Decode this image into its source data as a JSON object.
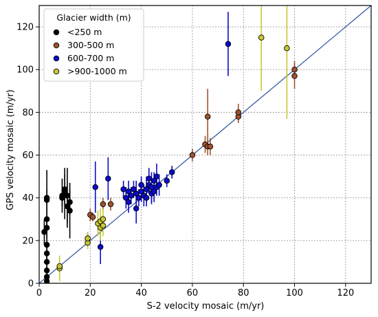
{
  "chart_data": {
    "type": "scatter",
    "xlabel": "S-2 velocity mosaic (m/yr)",
    "ylabel": "GPS velocity mosaic (m/yr)",
    "xlim": [
      0,
      130
    ],
    "ylim": [
      0,
      130
    ],
    "xticks": [
      "0",
      "20",
      "40",
      "60",
      "80",
      "100",
      "120"
    ],
    "yticks": [
      "0",
      "20",
      "40",
      "60",
      "80",
      "100",
      "120"
    ],
    "grid": true,
    "grid_style": "dotted",
    "reference_line": "1:1",
    "reference_line_color": "#3b5ba5",
    "legend": {
      "title": "Glacier width (m)",
      "location": "top-left"
    },
    "series": [
      {
        "name": "<250 m",
        "color": "#000000",
        "points": [
          {
            "x": 2,
            "y": 24,
            "err": 6
          },
          {
            "x": 3,
            "y": 40,
            "err": 13
          },
          {
            "x": 3,
            "y": 39,
            "err": 5
          },
          {
            "x": 3,
            "y": 26,
            "err": 5
          },
          {
            "x": 3,
            "y": 30,
            "err": 4
          },
          {
            "x": 3,
            "y": 18,
            "err": 7
          },
          {
            "x": 3,
            "y": 14,
            "err": 4
          },
          {
            "x": 3,
            "y": 10,
            "err": 4
          },
          {
            "x": 3,
            "y": 6,
            "err": 3
          },
          {
            "x": 3,
            "y": 3,
            "err": 2
          },
          {
            "x": 3,
            "y": 1,
            "err": 2
          },
          {
            "x": 9,
            "y": 41,
            "err": 8
          },
          {
            "x": 9,
            "y": 40,
            "err": 4
          },
          {
            "x": 10,
            "y": 42,
            "err": 12
          },
          {
            "x": 10,
            "y": 44,
            "err": 7
          },
          {
            "x": 11,
            "y": 36,
            "err": 10
          },
          {
            "x": 11,
            "y": 41,
            "err": 13
          },
          {
            "x": 12,
            "y": 34,
            "err": 13
          },
          {
            "x": 12,
            "y": 38,
            "err": 6
          }
        ]
      },
      {
        "name": "300-500 m",
        "color": "#a0522d",
        "points": [
          {
            "x": 20,
            "y": 32,
            "err": 3
          },
          {
            "x": 21,
            "y": 31,
            "err": 2
          },
          {
            "x": 25,
            "y": 37,
            "err": 3
          },
          {
            "x": 28,
            "y": 37,
            "err": 3
          },
          {
            "x": 60,
            "y": 60,
            "err": 3
          },
          {
            "x": 65,
            "y": 65,
            "err": 4
          },
          {
            "x": 66,
            "y": 78,
            "err": 13
          },
          {
            "x": 66,
            "y": 64,
            "err": 4
          },
          {
            "x": 67,
            "y": 64,
            "err": 4
          },
          {
            "x": 78,
            "y": 78,
            "err": 3
          },
          {
            "x": 78,
            "y": 80,
            "err": 4
          },
          {
            "x": 100,
            "y": 100,
            "err": 4
          },
          {
            "x": 100,
            "y": 97,
            "err": 6
          }
        ]
      },
      {
        "name": "600-700 m",
        "color": "#0a0ad0",
        "points": [
          {
            "x": 19,
            "y": 21,
            "err": 3
          },
          {
            "x": 22,
            "y": 45,
            "err": 12
          },
          {
            "x": 24,
            "y": 17,
            "err": 8
          },
          {
            "x": 27,
            "y": 49,
            "err": 10
          },
          {
            "x": 33,
            "y": 44,
            "err": 4
          },
          {
            "x": 34,
            "y": 40,
            "err": 5
          },
          {
            "x": 35,
            "y": 38,
            "err": 5
          },
          {
            "x": 35,
            "y": 43,
            "err": 5
          },
          {
            "x": 36,
            "y": 41,
            "err": 4
          },
          {
            "x": 37,
            "y": 44,
            "err": 4
          },
          {
            "x": 38,
            "y": 42,
            "err": 6
          },
          {
            "x": 38,
            "y": 35,
            "err": 7
          },
          {
            "x": 39,
            "y": 40,
            "err": 4
          },
          {
            "x": 40,
            "y": 43,
            "err": 5
          },
          {
            "x": 40,
            "y": 46,
            "err": 4
          },
          {
            "x": 41,
            "y": 41,
            "err": 5
          },
          {
            "x": 42,
            "y": 40,
            "err": 4
          },
          {
            "x": 42,
            "y": 44,
            "err": 6
          },
          {
            "x": 43,
            "y": 46,
            "err": 4
          },
          {
            "x": 43,
            "y": 49,
            "err": 5
          },
          {
            "x": 44,
            "y": 42,
            "err": 5
          },
          {
            "x": 44,
            "y": 45,
            "err": 7
          },
          {
            "x": 45,
            "y": 48,
            "err": 4
          },
          {
            "x": 45,
            "y": 43,
            "err": 5
          },
          {
            "x": 46,
            "y": 50,
            "err": 6
          },
          {
            "x": 46,
            "y": 45,
            "err": 4
          },
          {
            "x": 47,
            "y": 46,
            "err": 5
          },
          {
            "x": 50,
            "y": 48,
            "err": 3
          },
          {
            "x": 52,
            "y": 52,
            "err": 3
          },
          {
            "x": 74,
            "y": 112,
            "err": 15
          }
        ]
      },
      {
        "name": ">900-1000 m",
        "color": "#c8c832",
        "points": [
          {
            "x": 8,
            "y": 7,
            "err": 6
          },
          {
            "x": 8,
            "y": 8,
            "err": 4
          },
          {
            "x": 19,
            "y": 19,
            "err": 3
          },
          {
            "x": 19,
            "y": 21,
            "err": 3
          },
          {
            "x": 23,
            "y": 28,
            "err": 6
          },
          {
            "x": 24,
            "y": 26,
            "err": 6
          },
          {
            "x": 24,
            "y": 29,
            "err": 6
          },
          {
            "x": 25,
            "y": 30,
            "err": 5
          },
          {
            "x": 25,
            "y": 27,
            "err": 5
          },
          {
            "x": 87,
            "y": 115,
            "err": 25
          },
          {
            "x": 97,
            "y": 110,
            "err": 33
          }
        ]
      }
    ]
  }
}
